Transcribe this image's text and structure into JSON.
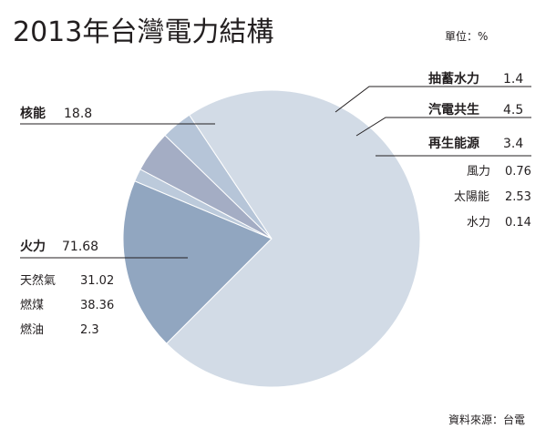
{
  "chart_data": {
    "type": "pie",
    "title": "2013年台灣電力結構",
    "unit_label": "單位：%",
    "source": "資料來源：台電",
    "slices": [
      {
        "name": "火力",
        "value": 71.68,
        "color": "#d2dbe6",
        "breakdown": [
          {
            "name": "天然氣",
            "value": "31.02"
          },
          {
            "name": "燃煤",
            "value": "38.36"
          },
          {
            "name": "燃油",
            "value": "2.3"
          }
        ]
      },
      {
        "name": "核能",
        "value": 18.8,
        "color": "#91a6c0"
      },
      {
        "name": "抽蓄水力",
        "value": 1.4,
        "color": "#bccadb"
      },
      {
        "name": "汽電共生",
        "value": 4.5,
        "color": "#a4adc4"
      },
      {
        "name": "再生能源",
        "value": 3.4,
        "color": "#b6c5d8",
        "breakdown": [
          {
            "name": "風力",
            "value": "0.76"
          },
          {
            "name": "太陽能",
            "value": "2.53"
          },
          {
            "name": "水力",
            "value": "0.14"
          }
        ]
      }
    ],
    "labels": {
      "fire": {
        "name": "火力",
        "value": "71.68"
      },
      "nuclear": {
        "name": "核能",
        "value": "18.8"
      },
      "pumped": {
        "name": "抽蓄水力",
        "value": "1.4"
      },
      "cogen": {
        "name": "汽電共生",
        "value": "4.5"
      },
      "renew": {
        "name": "再生能源",
        "value": "3.4"
      }
    }
  }
}
